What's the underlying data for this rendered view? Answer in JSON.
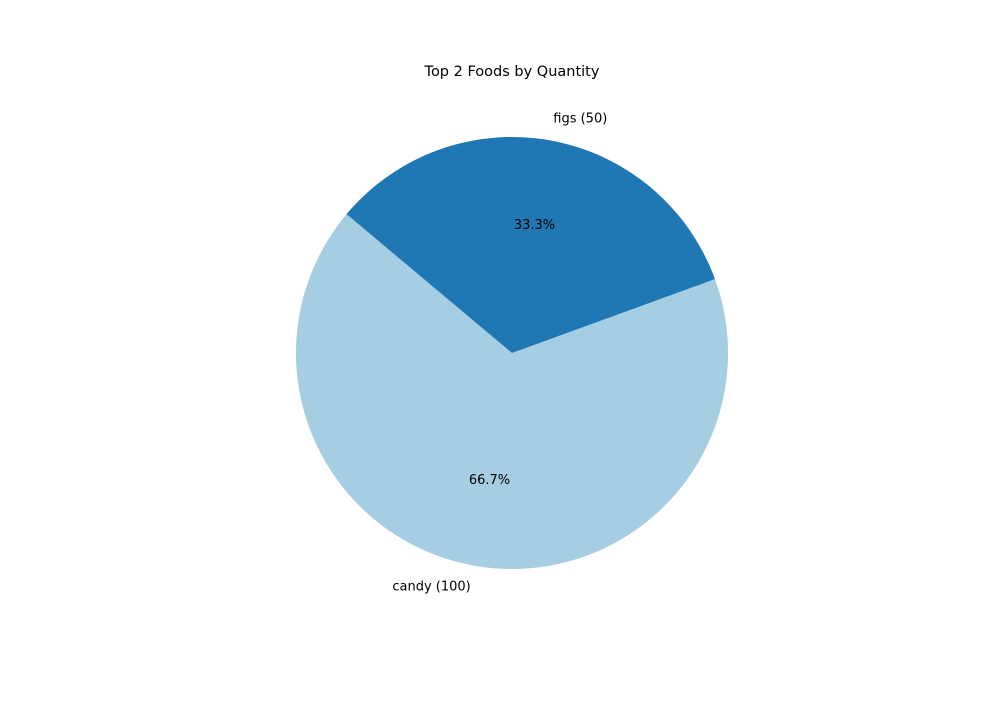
{
  "chart_data": {
    "type": "pie",
    "title": "Top 2 Foods by Quantity",
    "slices": [
      {
        "label": "candy (100)",
        "name": "candy",
        "value": 100,
        "percent_label": "66.7%",
        "color": "#a6cee3"
      },
      {
        "label": "figs (50)",
        "name": "figs",
        "value": 50,
        "percent_label": "33.3%",
        "color": "#1f78b4"
      }
    ]
  }
}
